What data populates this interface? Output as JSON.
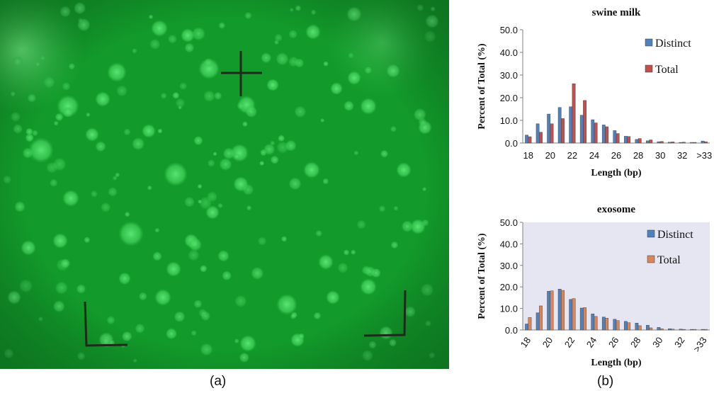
{
  "panels": {
    "a_label": "(a)",
    "b_label": "(b)"
  },
  "micrograph": {
    "background_color": "#129a2a",
    "spot_color": "#45d85e",
    "mark_color": "#1e2a1a"
  },
  "chart_data": [
    {
      "type": "bar",
      "title": "swine milk",
      "xlabel": "Length (bp)",
      "ylabel": "Percent of Total (%)",
      "ylim": [
        0,
        50
      ],
      "yticks": [
        "0.0",
        "10.0",
        "20.0",
        "30.0",
        "40.0",
        "50.0"
      ],
      "categories": [
        "18",
        "19",
        "20",
        "21",
        "22",
        "23",
        "24",
        "25",
        "26",
        "27",
        "28",
        "29",
        "30",
        "31",
        "32",
        "33",
        ">33"
      ],
      "tick_labels": [
        "18",
        "20",
        "22",
        "24",
        "26",
        "28",
        "30",
        "32",
        ">33"
      ],
      "tick_categories": [
        "18",
        "20",
        "22",
        "24",
        "26",
        "28",
        "30",
        "32",
        ">33"
      ],
      "series": [
        {
          "name": "Distinct",
          "color": "#4f81bd",
          "values": [
            3.5,
            8.5,
            12.8,
            15.7,
            16.0,
            12.3,
            10.3,
            8.0,
            5.5,
            3.0,
            1.6,
            1.0,
            0.6,
            0.4,
            0.3,
            0.3,
            0.9
          ]
        },
        {
          "name": "Total",
          "color": "#c0504d",
          "values": [
            2.8,
            4.8,
            8.5,
            10.8,
            26.2,
            18.8,
            8.9,
            7.2,
            4.2,
            2.9,
            2.0,
            1.4,
            0.7,
            0.5,
            0.4,
            0.3,
            0.6
          ]
        }
      ],
      "grid": false,
      "legend": "right"
    },
    {
      "type": "bar",
      "title": "exosome",
      "xlabel": "Length (bp)",
      "ylabel": "Percent of Total (%)",
      "ylim": [
        0,
        50
      ],
      "yticks": [
        "0.0",
        "10.0",
        "20.0",
        "30.0",
        "40.0",
        "50.0"
      ],
      "categories": [
        "18",
        "19",
        "20",
        "21",
        "22",
        "23",
        "24",
        "25",
        "26",
        "27",
        "28",
        "29",
        "30",
        "31",
        "32",
        "33",
        ">33"
      ],
      "tick_labels": [
        "18",
        "20",
        "22",
        "24",
        "26",
        "28",
        "30",
        "32",
        ">33"
      ],
      "tick_categories": [
        "18",
        "20",
        "22",
        "24",
        "26",
        "28",
        "30",
        "32",
        ">33"
      ],
      "series": [
        {
          "name": "Distinct",
          "color": "#4f81bd",
          "values": [
            2.8,
            8.0,
            18.0,
            19.0,
            14.2,
            10.2,
            7.5,
            6.0,
            5.0,
            4.0,
            3.2,
            2.2,
            1.2,
            0.6,
            0.4,
            0.3,
            0.3
          ]
        },
        {
          "name": "Total",
          "color": "#d9855a",
          "values": [
            5.8,
            11.2,
            18.2,
            18.4,
            14.6,
            10.4,
            6.3,
            5.5,
            4.4,
            3.4,
            2.0,
            1.0,
            0.6,
            0.4,
            0.3,
            0.3,
            0.3
          ]
        }
      ],
      "plot_background": "#e6e6f2",
      "grid": false,
      "legend": "right",
      "rotated_x_ticks": true
    }
  ]
}
